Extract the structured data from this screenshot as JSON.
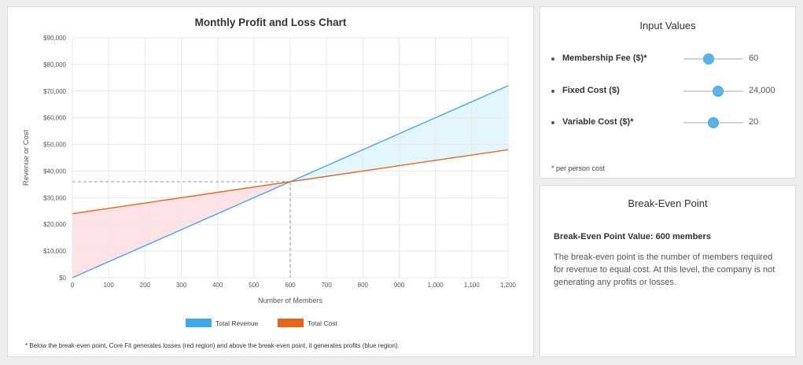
{
  "chart_panel": {
    "note": "* Below the break-even point, Core Fit generates losses (red region) and above the break-even point, it generates profits (blue region)."
  },
  "chart_data": {
    "type": "line",
    "title": "Monthly Profit and Loss Chart",
    "xlabel": "Number of Members",
    "ylabel": "Revenue or Cost",
    "xlim": [
      0,
      1200
    ],
    "ylim": [
      0,
      90000
    ],
    "x_ticks": [
      0,
      100,
      200,
      300,
      400,
      500,
      600,
      700,
      800,
      900,
      1000,
      1100,
      1200
    ],
    "x_tick_labels": [
      "0",
      "100",
      "200",
      "300",
      "400",
      "500",
      "600",
      "700",
      "800",
      "900",
      "1,000",
      "1,100",
      "1,200"
    ],
    "y_ticks": [
      0,
      10000,
      20000,
      30000,
      40000,
      50000,
      60000,
      70000,
      80000,
      90000
    ],
    "y_tick_labels": [
      "$0",
      "$10,000",
      "$20,000",
      "$30,000",
      "$40,000",
      "$50,000",
      "$60,000",
      "$70,000",
      "$80,000",
      "$90,000"
    ],
    "grid": true,
    "legend_position": "bottom",
    "x": [
      0,
      1200
    ],
    "series": [
      {
        "name": "Total Revenue",
        "color": "#3fa9e8",
        "values": [
          0,
          72000
        ]
      },
      {
        "name": "Total Cost",
        "color": "#e8641b",
        "values": [
          24000,
          48000
        ]
      }
    ],
    "break_even": {
      "x": 600,
      "y": 36000
    },
    "loss_fill_color": "#fde2e6",
    "profit_fill_color": "#e3f6fb"
  },
  "inputs": {
    "title": "Input Values",
    "items": [
      {
        "label": "Membership Fee ($)*",
        "value": "60",
        "fraction": 0.42
      },
      {
        "label": "Fixed Cost ($)",
        "value": "24,000",
        "fraction": 0.58
      },
      {
        "label": "Variable Cost ($)*",
        "value": "20",
        "fraction": 0.5
      }
    ],
    "note": "* per person cost"
  },
  "break_even_panel": {
    "title": "Break-Even Point",
    "value_label": "Break-Even Point Value: ",
    "value": "600 members",
    "description": "The break-even point is the number of members required for revenue to equal cost. At this level, the company is not generating any profits or losses."
  }
}
